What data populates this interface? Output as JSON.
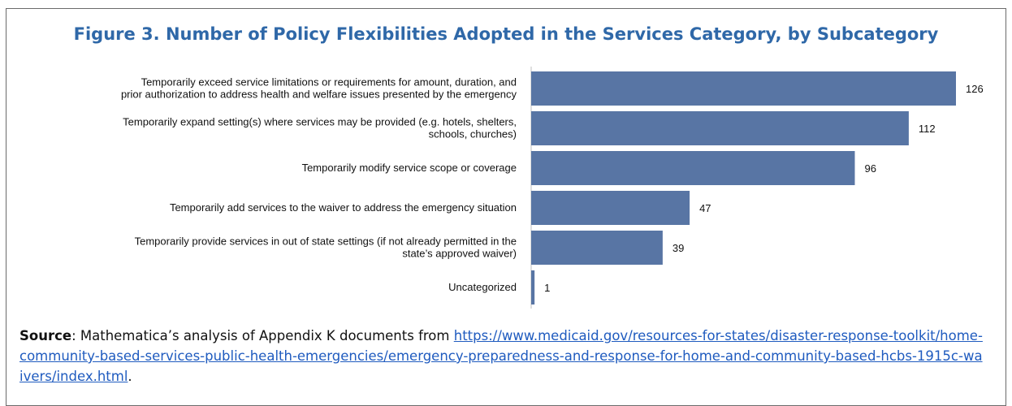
{
  "chart_data": {
    "type": "bar",
    "orientation": "horizontal",
    "title": "Figure 3. Number of Policy Flexibilities Adopted in the Services Category, by Subcategory",
    "categories": [
      [
        "Temporarily exceed service limitations or requirements for amount, duration, and",
        "prior authorization to address health and welfare issues presented by the emergency"
      ],
      [
        "Temporarily expand setting(s) where services may be provided (e.g. hotels, shelters,",
        "schools, churches)"
      ],
      [
        "Temporarily modify service scope or coverage"
      ],
      [
        "Temporarily add services to the waiver to address the emergency situation"
      ],
      [
        "Temporarily provide services in out of state settings (if not already permitted in the",
        "state’s approved waiver)"
      ],
      [
        "Uncategorized"
      ]
    ],
    "values": [
      126,
      112,
      96,
      47,
      39,
      1
    ],
    "xlim": [
      0,
      130
    ],
    "bar_color": "#5875a4",
    "grid": false
  },
  "source": {
    "label": "Source",
    "text": ":  Mathematica’s analysis of Appendix K documents from ",
    "url": "https://www.medicaid.gov/resources-for-states/disaster-response-toolkit/home-community-based-services-public-health-emergencies/emergency-preparedness-and-response-for-home-and-community-based-hcbs-1915c-waivers/index.html",
    "end": "."
  }
}
